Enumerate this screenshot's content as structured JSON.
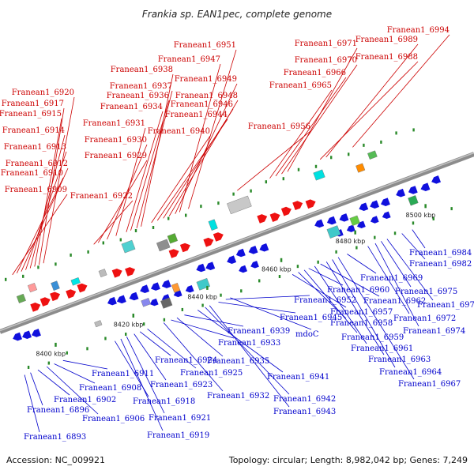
{
  "title": "Frankia sp. EAN1pec, complete genome",
  "footer": {
    "accession": "Accession: NC_009921",
    "stats": "Topology: circular; Length: 8,982,042 bp; Genes: 7,249"
  },
  "colors": {
    "forward_label": "#cc0000",
    "reverse_label": "#0000cc",
    "forward_feature": "#ee1111",
    "reverse_feature": "#1010dd",
    "backbone": "#8c8c8c",
    "tick": "#2a8a2a"
  },
  "ruler": {
    "ticks": [
      {
        "label": "8400 kbp"
      },
      {
        "label": "8420 kbp"
      },
      {
        "label": "8440 kbp"
      },
      {
        "label": "8460 kbp"
      },
      {
        "label": "8480 kbp"
      },
      {
        "label": "8500 kbp"
      }
    ]
  },
  "forward_labels": [
    "Franean1_6909",
    "Franean1_6910",
    "Franean1_6912",
    "Franean1_6913",
    "Franean1_6914",
    "Franean1_6915",
    "Franean1_6917",
    "Franean1_6920",
    "Franean1_6922",
    "Franean1_6929",
    "Franean1_6930",
    "Franean1_6931",
    "Franean1_6934",
    "Franean1_6936",
    "Franean1_6937",
    "Franean1_6938",
    "Franean1_6940",
    "Franean1_6944",
    "Franean1_6946",
    "Franean1_6948",
    "Franean1_6949",
    "Franean1_6947",
    "Franean1_6951",
    "Franean1_6956",
    "Franean1_6965",
    "Franean1_6966",
    "Franean1_6970",
    "Franean1_6971",
    "Franean1_6988",
    "Franean1_6989",
    "Franean1_6994"
  ],
  "reverse_labels": [
    "Franean1_6893",
    "Franean1_6896",
    "Franean1_6902",
    "Franean1_6906",
    "Franean1_6908",
    "Franean1_6911",
    "Franean1_6918",
    "Franean1_6919",
    "Franean1_6921",
    "Franean1_6923",
    "Franean1_6924",
    "Franean1_6925",
    "Franean1_6932",
    "Franean1_6933",
    "Franean1_6935",
    "Franean1_6939",
    "Franean1_6941",
    "Franean1_6942",
    "Franean1_6943",
    "Franean1_6945",
    "Franean1_6952",
    "mdoC",
    "Franean1_6957",
    "Franean1_6958",
    "Franean1_6959",
    "Franean1_6960",
    "Franean1_6961",
    "Franean1_6962",
    "Franean1_6963",
    "Franean1_6964",
    "Franean1_6967",
    "Franean1_6969",
    "Franean1_6972",
    "Franean1_6974",
    "Franean1_6975",
    "Franean1_6977",
    "Franean1_6982",
    "Franean1_6984"
  ]
}
